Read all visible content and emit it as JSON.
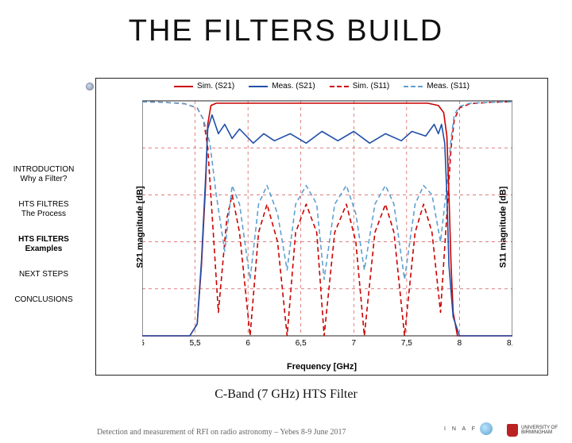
{
  "title": "THE FILTERS BUILD",
  "sidebar": {
    "items": [
      {
        "main": "INTRODUCTION",
        "sub": "Why a Filter?",
        "active": false
      },
      {
        "main": "HTS FILTRES",
        "sub": "The Process",
        "active": false
      },
      {
        "main": "HTS FILTERS",
        "sub": "Examples",
        "active": true
      },
      {
        "main": "NEXT STEPS",
        "sub": "",
        "active": false
      },
      {
        "main": "CONCLUSIONS",
        "sub": "",
        "active": false
      }
    ]
  },
  "chart": {
    "type": "line",
    "legend": [
      {
        "label": "Sim. (S21)",
        "color": "#cc0000",
        "dash": false
      },
      {
        "label": "Meas. (S21)",
        "color": "#1f4fa8",
        "dash": false
      },
      {
        "label": "Sim. (S11)",
        "color": "#cc0000",
        "dash": true
      },
      {
        "label": "Meas. (S11)",
        "color": "#5ea0d0",
        "dash": true
      }
    ],
    "xlabel": "Frequency [GHz]",
    "ylabel_left": "S21 magnitude [dB]",
    "ylabel_right": "S11 magnitude [dB]",
    "xlim": [
      5,
      8.5
    ],
    "xtick_step": 0.5,
    "ylim_left": [
      -1.0,
      0.0
    ],
    "ylim_right": [
      -50,
      0
    ],
    "ytick_step_left": 0.2,
    "ytick_step_right": 10,
    "grid_color": "#cc3333",
    "grid_dash": "4 4",
    "background_color": "#ffffff",
    "line_width": 1.6,
    "series": {
      "sim_s21": {
        "color": "#cc0000",
        "dash": false,
        "axis": "left",
        "x": [
          5.0,
          5.2,
          5.35,
          5.45,
          5.52,
          5.56,
          5.6,
          5.62,
          5.65,
          5.7,
          5.8,
          6.0,
          6.2,
          6.5,
          6.8,
          7.0,
          7.3,
          7.5,
          7.7,
          7.8,
          7.85,
          7.88,
          7.9,
          7.92,
          7.94,
          7.98,
          8.05,
          8.15,
          8.3,
          8.5
        ],
        "y": [
          -1.0,
          -1.0,
          -1.0,
          -1.0,
          -0.95,
          -0.7,
          -0.35,
          -0.1,
          -0.02,
          -0.01,
          -0.01,
          -0.01,
          -0.01,
          -0.01,
          -0.01,
          -0.01,
          -0.01,
          -0.01,
          -0.01,
          -0.02,
          -0.05,
          -0.15,
          -0.4,
          -0.7,
          -0.9,
          -1.0,
          -1.0,
          -1.0,
          -1.0,
          -1.0
        ]
      },
      "meas_s21": {
        "color": "#1f4fa8",
        "dash": false,
        "axis": "left",
        "x": [
          5.0,
          5.2,
          5.35,
          5.45,
          5.52,
          5.56,
          5.6,
          5.62,
          5.66,
          5.72,
          5.78,
          5.85,
          5.92,
          6.05,
          6.15,
          6.25,
          6.4,
          6.55,
          6.7,
          6.85,
          7.0,
          7.15,
          7.3,
          7.45,
          7.55,
          7.68,
          7.76,
          7.8,
          7.83,
          7.86,
          7.88,
          7.9,
          7.94,
          8.0,
          8.15,
          8.3,
          8.5
        ],
        "y": [
          -1.0,
          -1.0,
          -1.0,
          -1.0,
          -0.95,
          -0.68,
          -0.32,
          -0.12,
          -0.06,
          -0.14,
          -0.1,
          -0.16,
          -0.12,
          -0.18,
          -0.14,
          -0.17,
          -0.14,
          -0.18,
          -0.13,
          -0.17,
          -0.13,
          -0.18,
          -0.14,
          -0.17,
          -0.13,
          -0.15,
          -0.1,
          -0.14,
          -0.1,
          -0.18,
          -0.4,
          -0.7,
          -0.92,
          -1.0,
          -1.0,
          -1.0,
          -1.0
        ]
      },
      "sim_s11": {
        "color": "#cc0000",
        "dash": true,
        "axis": "right",
        "x": [
          5.0,
          5.2,
          5.4,
          5.52,
          5.58,
          5.62,
          5.66,
          5.72,
          5.8,
          5.85,
          5.92,
          6.02,
          6.1,
          6.18,
          6.28,
          6.37,
          6.45,
          6.55,
          6.65,
          6.72,
          6.82,
          6.93,
          7.02,
          7.1,
          7.2,
          7.3,
          7.38,
          7.48,
          7.58,
          7.66,
          7.74,
          7.82,
          7.88,
          7.92,
          7.95,
          8.0,
          8.1,
          8.3,
          8.5
        ],
        "y": [
          -0.2,
          -0.3,
          -0.6,
          -1.5,
          -4,
          -10,
          -24,
          -45,
          -25,
          -20,
          -28,
          -50,
          -28,
          -22,
          -30,
          -50,
          -28,
          -22,
          -28,
          -50,
          -28,
          -22,
          -30,
          -50,
          -28,
          -22,
          -28,
          -50,
          -28,
          -22,
          -28,
          -45,
          -24,
          -10,
          -4,
          -1.5,
          -0.6,
          -0.3,
          -0.2
        ]
      },
      "meas_s11": {
        "color": "#5ea0d0",
        "dash": true,
        "axis": "right",
        "x": [
          5.0,
          5.2,
          5.4,
          5.52,
          5.58,
          5.64,
          5.7,
          5.78,
          5.85,
          5.92,
          6.02,
          6.1,
          6.18,
          6.28,
          6.37,
          6.45,
          6.55,
          6.65,
          6.72,
          6.82,
          6.93,
          7.02,
          7.1,
          7.2,
          7.3,
          7.38,
          7.48,
          7.58,
          7.66,
          7.74,
          7.82,
          7.88,
          7.92,
          7.95,
          8.0,
          8.1,
          8.3,
          8.5
        ],
        "y": [
          -0.2,
          -0.3,
          -0.6,
          -1.5,
          -4,
          -9,
          -20,
          -32,
          -18,
          -22,
          -38,
          -22,
          -18,
          -24,
          -36,
          -22,
          -18,
          -22,
          -38,
          -22,
          -18,
          -24,
          -36,
          -22,
          -18,
          -22,
          -38,
          -22,
          -18,
          -20,
          -30,
          -18,
          -8,
          -3,
          -1.2,
          -0.5,
          -0.3,
          -0.2
        ]
      }
    }
  },
  "caption": "C-Band (7 GHz) HTS Filter",
  "footer": "Detection and measurement of RFI on radio astronomy – Yebes 8-9 June 2017",
  "logos": {
    "inaf": "I N A F",
    "ub_line1": "UNIVERSITY OF",
    "ub_line2": "BIRMINGHAM"
  }
}
